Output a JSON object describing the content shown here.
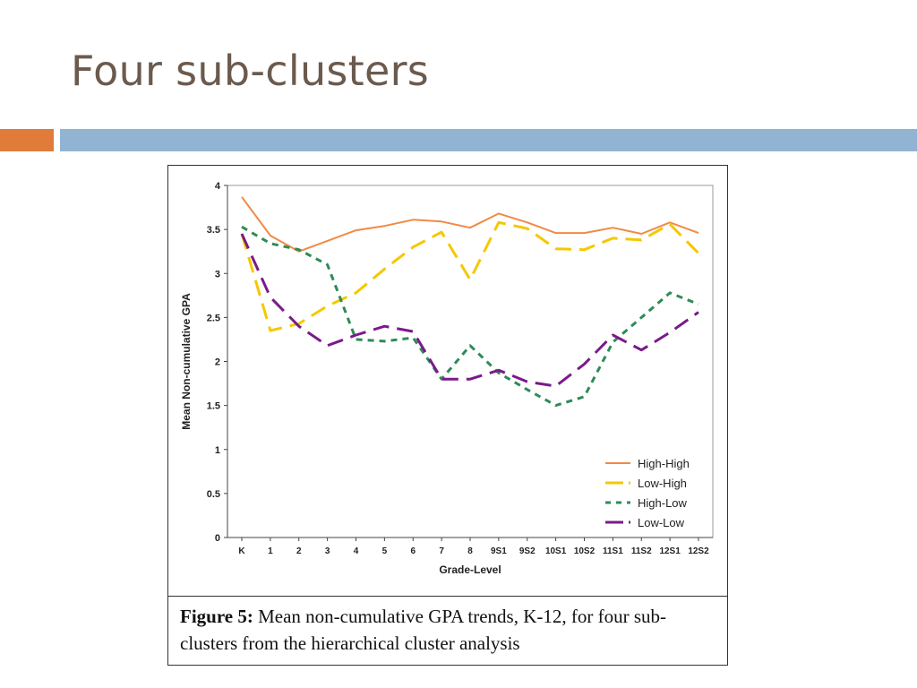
{
  "slide": {
    "title": "Four sub-clusters"
  },
  "colors": {
    "accent_orange": "#e07b39",
    "accent_blue": "#92b4d3",
    "title": "#6b5a4e"
  },
  "figure": {
    "caption_label": "Figure 5:",
    "caption_text": " Mean non-cumulative GPA trends, K-12, for four sub-clusters from the hierarchical cluster analysis"
  },
  "chart_data": {
    "type": "line",
    "title": "",
    "xlabel": "Grade-Level",
    "ylabel": "Mean Non-cumulative GPA",
    "ylim": [
      0,
      4
    ],
    "yticks": [
      "0",
      "0.5",
      "1",
      "1.5",
      "2",
      "2.5",
      "3",
      "3.5",
      "4"
    ],
    "categories": [
      "K",
      "1",
      "2",
      "3",
      "4",
      "5",
      "6",
      "7",
      "8",
      "9S1",
      "9S2",
      "10S1",
      "10S2",
      "11S1",
      "11S2",
      "12S1",
      "12S2"
    ],
    "legend_position": "bottom-right",
    "grid": false,
    "series": [
      {
        "name": "High-High",
        "color": "#f08a45",
        "style": "solid",
        "values": [
          3.87,
          3.43,
          3.25,
          3.37,
          3.49,
          3.54,
          3.61,
          3.59,
          3.52,
          3.68,
          3.58,
          3.46,
          3.46,
          3.52,
          3.45,
          3.58,
          3.46
        ]
      },
      {
        "name": "Low-High",
        "color": "#f5c800",
        "style": "long-dash",
        "values": [
          3.45,
          2.35,
          2.43,
          2.63,
          2.78,
          3.05,
          3.3,
          3.47,
          2.93,
          3.58,
          3.51,
          3.28,
          3.27,
          3.4,
          3.38,
          3.56,
          3.23
        ]
      },
      {
        "name": "High-Low",
        "color": "#2e8b57",
        "style": "short-dash",
        "values": [
          3.53,
          3.34,
          3.27,
          3.1,
          2.25,
          2.23,
          2.27,
          1.8,
          2.18,
          1.87,
          1.68,
          1.5,
          1.6,
          2.22,
          2.5,
          2.78,
          2.65
        ]
      },
      {
        "name": "Low-Low",
        "color": "#7a1a8a",
        "style": "long-dash",
        "values": [
          3.45,
          2.73,
          2.4,
          2.18,
          2.3,
          2.4,
          2.34,
          1.8,
          1.8,
          1.9,
          1.77,
          1.72,
          1.97,
          2.3,
          2.13,
          2.33,
          2.56
        ]
      }
    ]
  }
}
